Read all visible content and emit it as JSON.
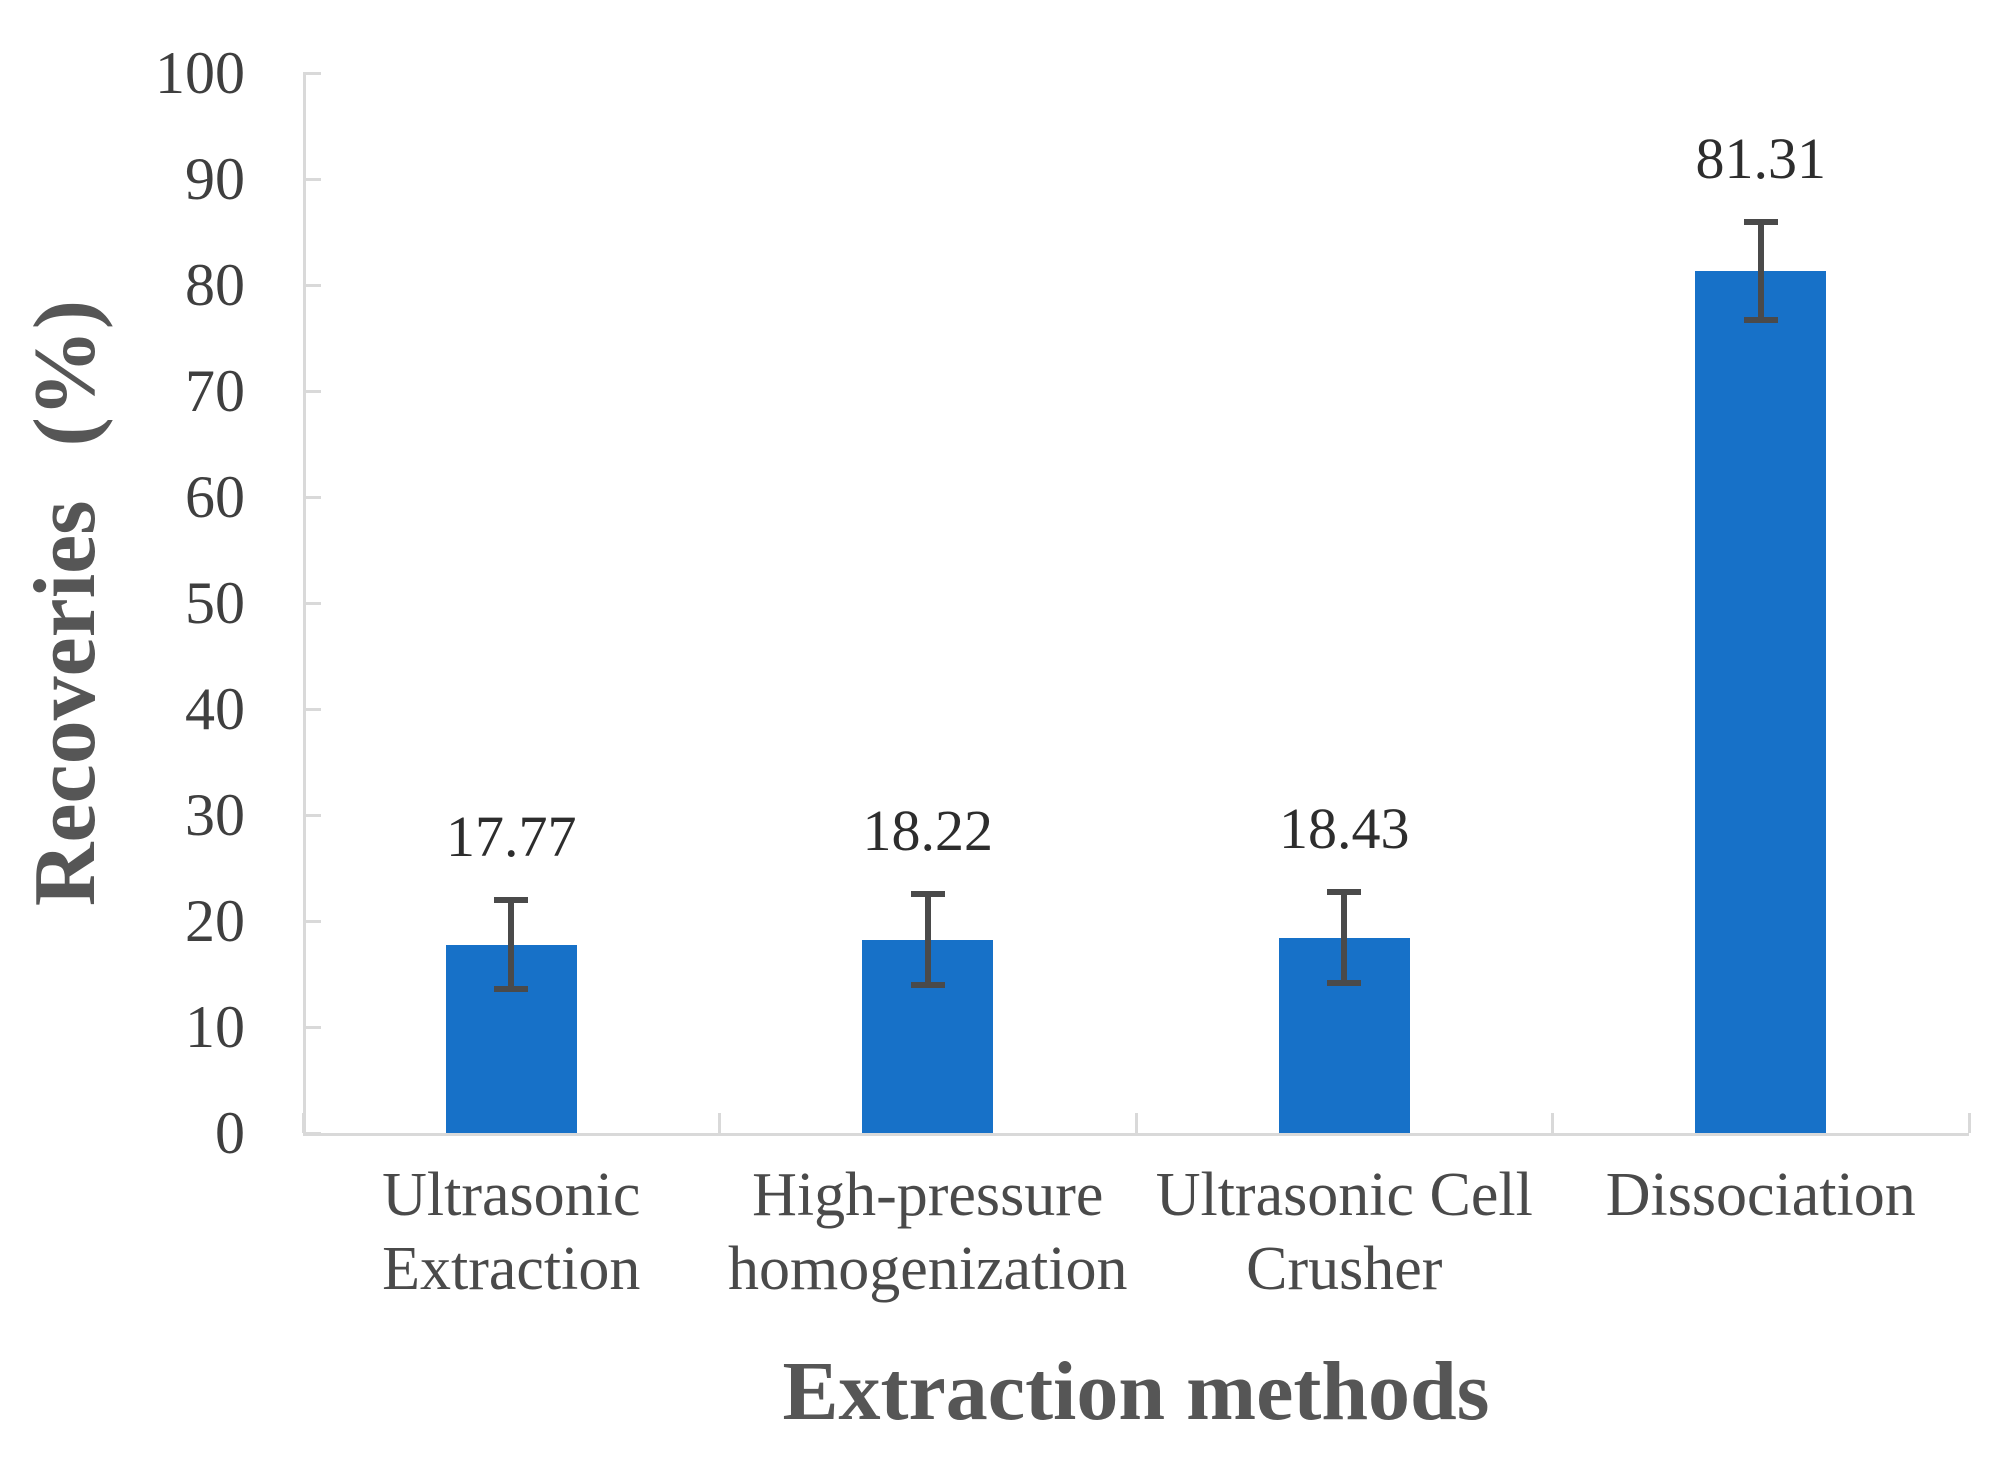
{
  "chart_data": {
    "type": "bar",
    "title": "",
    "xlabel": "Extraction methods",
    "ylabel": "Recoveries (%)",
    "categories": [
      "Ultrasonic Extraction",
      "High-pressure homogenization",
      "Ultrasonic Cell Crusher",
      "Dissociation"
    ],
    "category_label_lines": [
      [
        "Ultrasonic",
        "Extraction"
      ],
      [
        "High-pressure",
        "homogenization"
      ],
      [
        "Ultrasonic Cell",
        "Crusher"
      ],
      [
        "Dissociation"
      ]
    ],
    "values": [
      17.77,
      18.22,
      18.43,
      81.31
    ],
    "data_labels": [
      "17.77",
      "18.22",
      "18.43",
      "81.31"
    ],
    "errors": [
      4.2,
      4.3,
      4.3,
      4.6
    ],
    "ylim": [
      0,
      100
    ],
    "yticks": [
      0,
      10,
      20,
      30,
      40,
      50,
      60,
      70,
      80,
      90,
      100
    ],
    "grid": false,
    "legend": "none",
    "layout": {
      "bar_orientation": "vertical",
      "error_bars": "both-caps",
      "tick_direction": "inside"
    },
    "colors": {
      "bar": "#1771C8",
      "error_bar": "#4A4A4A",
      "axis": "#D9D9D9",
      "tick_label": "#3F3F3F",
      "data_label": "#2D2D2D",
      "category_label": "#4A4A4A",
      "axis_title": "#565656"
    }
  }
}
